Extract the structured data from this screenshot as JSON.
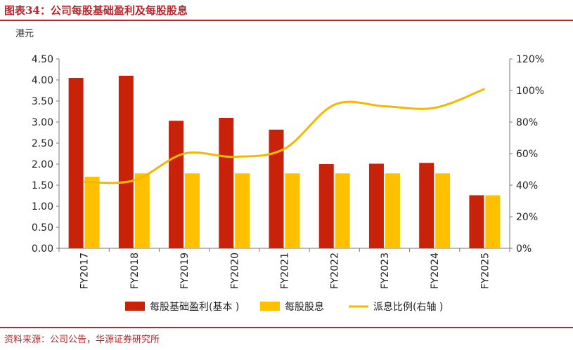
{
  "figure_title": "图表34：公司每股基础盈利及每股股息",
  "source_note": "资料来源：公司公告，华源证券研究所",
  "colors": {
    "accent": "#B8252B",
    "eps": "#C9220B",
    "dps": "#FFC000",
    "payout": "#F5B800"
  },
  "chart_data": {
    "type": "bar",
    "unit_label": "港元",
    "categories": [
      "FY2017",
      "FY2018",
      "FY2019",
      "FY2020",
      "FY2021",
      "FY2022",
      "FY2023",
      "FY2024",
      "FY2025"
    ],
    "series": [
      {
        "name": "每股基础盈利(基本 )",
        "type": "bar",
        "axis": "left",
        "values": [
          4.05,
          4.1,
          3.03,
          3.1,
          2.82,
          2.0,
          2.01,
          2.03,
          1.26
        ]
      },
      {
        "name": "每股股息",
        "type": "bar",
        "axis": "left",
        "values": [
          1.7,
          1.78,
          1.78,
          1.78,
          1.78,
          1.78,
          1.78,
          1.78,
          1.26
        ]
      },
      {
        "name": "派息比例(右轴 )",
        "type": "line",
        "axis": "right",
        "values": [
          0.42,
          0.43,
          0.6,
          0.58,
          0.63,
          0.91,
          0.9,
          0.89,
          1.01
        ]
      }
    ],
    "ylim_left": [
      0,
      4.5
    ],
    "yticks_left": [
      "0.00",
      "0.50",
      "1.00",
      "1.50",
      "2.00",
      "2.50",
      "3.00",
      "3.50",
      "4.00",
      "4.50"
    ],
    "ylim_right": [
      0,
      1.2
    ],
    "yticks_right": [
      "0%",
      "20%",
      "40%",
      "60%",
      "80%",
      "100%",
      "120%"
    ],
    "legend_position": "bottom",
    "grid": false
  }
}
